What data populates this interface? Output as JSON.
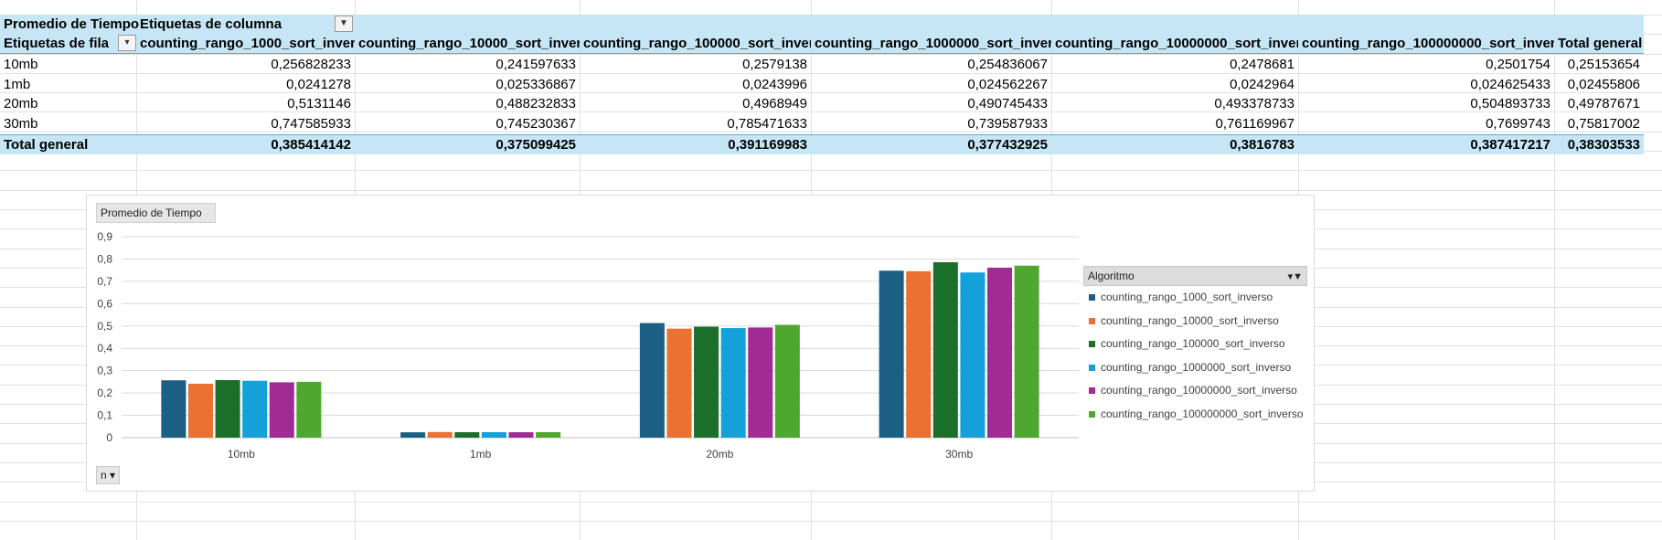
{
  "pivot": {
    "corner_label": "Promedio de Tiempo",
    "col_labels_header": "Etiquetas de columna",
    "row_labels_header": "Etiquetas de fila",
    "columns": [
      "counting_rango_1000_sort_inverso",
      "counting_rango_10000_sort_inverso",
      "counting_rango_100000_sort_inverso",
      "counting_rango_1000000_sort_inverso",
      "counting_rango_10000000_sort_inverso",
      "counting_rango_100000000_sort_inverso",
      "Total general"
    ],
    "rows": [
      {
        "label": "10mb",
        "values": [
          "0,256828233",
          "0,241597633",
          "0,2579138",
          "0,254836067",
          "0,2478681",
          "0,2501754",
          "0,25153654"
        ]
      },
      {
        "label": "1mb",
        "values": [
          "0,0241278",
          "0,025336867",
          "0,0243996",
          "0,024562267",
          "0,0242964",
          "0,024625433",
          "0,02455806"
        ]
      },
      {
        "label": "20mb",
        "values": [
          "0,5131146",
          "0,488232833",
          "0,4968949",
          "0,490745433",
          "0,493378733",
          "0,504893733",
          "0,49787671"
        ]
      },
      {
        "label": "30mb",
        "values": [
          "0,747585933",
          "0,745230367",
          "0,785471633",
          "0,739587933",
          "0,761169967",
          "0,7699743",
          "0,75817002"
        ]
      }
    ],
    "total": {
      "label": "Total general",
      "values": [
        "0,385414142",
        "0,375099425",
        "0,391169983",
        "0,377432925",
        "0,3816783",
        "0,387417217",
        "0,38303533"
      ]
    }
  },
  "chart": {
    "title_button": "Promedio de Tiempo",
    "legend_title": "Algoritmo",
    "filter_button": "n",
    "colors": [
      "#1b5f84",
      "#ea7132",
      "#1b6f2b",
      "#14a0d8",
      "#a02b93",
      "#4ea72e"
    ]
  },
  "chart_data": {
    "type": "bar",
    "categories": [
      "10mb",
      "1mb",
      "20mb",
      "30mb"
    ],
    "series": [
      {
        "name": "counting_rango_1000_sort_inverso",
        "values": [
          0.256828233,
          0.0241278,
          0.5131146,
          0.747585933
        ]
      },
      {
        "name": "counting_rango_10000_sort_inverso",
        "values": [
          0.241597633,
          0.025336867,
          0.488232833,
          0.745230367
        ]
      },
      {
        "name": "counting_rango_100000_sort_inverso",
        "values": [
          0.2579138,
          0.0243996,
          0.4968949,
          0.785471633
        ]
      },
      {
        "name": "counting_rango_1000000_sort_inverso",
        "values": [
          0.254836067,
          0.024562267,
          0.490745433,
          0.739587933
        ]
      },
      {
        "name": "counting_rango_10000000_sort_inverso",
        "values": [
          0.2478681,
          0.0242964,
          0.493378733,
          0.761169967
        ]
      },
      {
        "name": "counting_rango_100000000_sort_inverso",
        "values": [
          0.2501754,
          0.024625433,
          0.504893733,
          0.7699743
        ]
      }
    ],
    "yticks": [
      "0",
      "0,1",
      "0,2",
      "0,3",
      "0,4",
      "0,5",
      "0,6",
      "0,7",
      "0,8",
      "0,9"
    ],
    "ylim": [
      0,
      0.9
    ],
    "grid": true,
    "legend_position": "right"
  }
}
